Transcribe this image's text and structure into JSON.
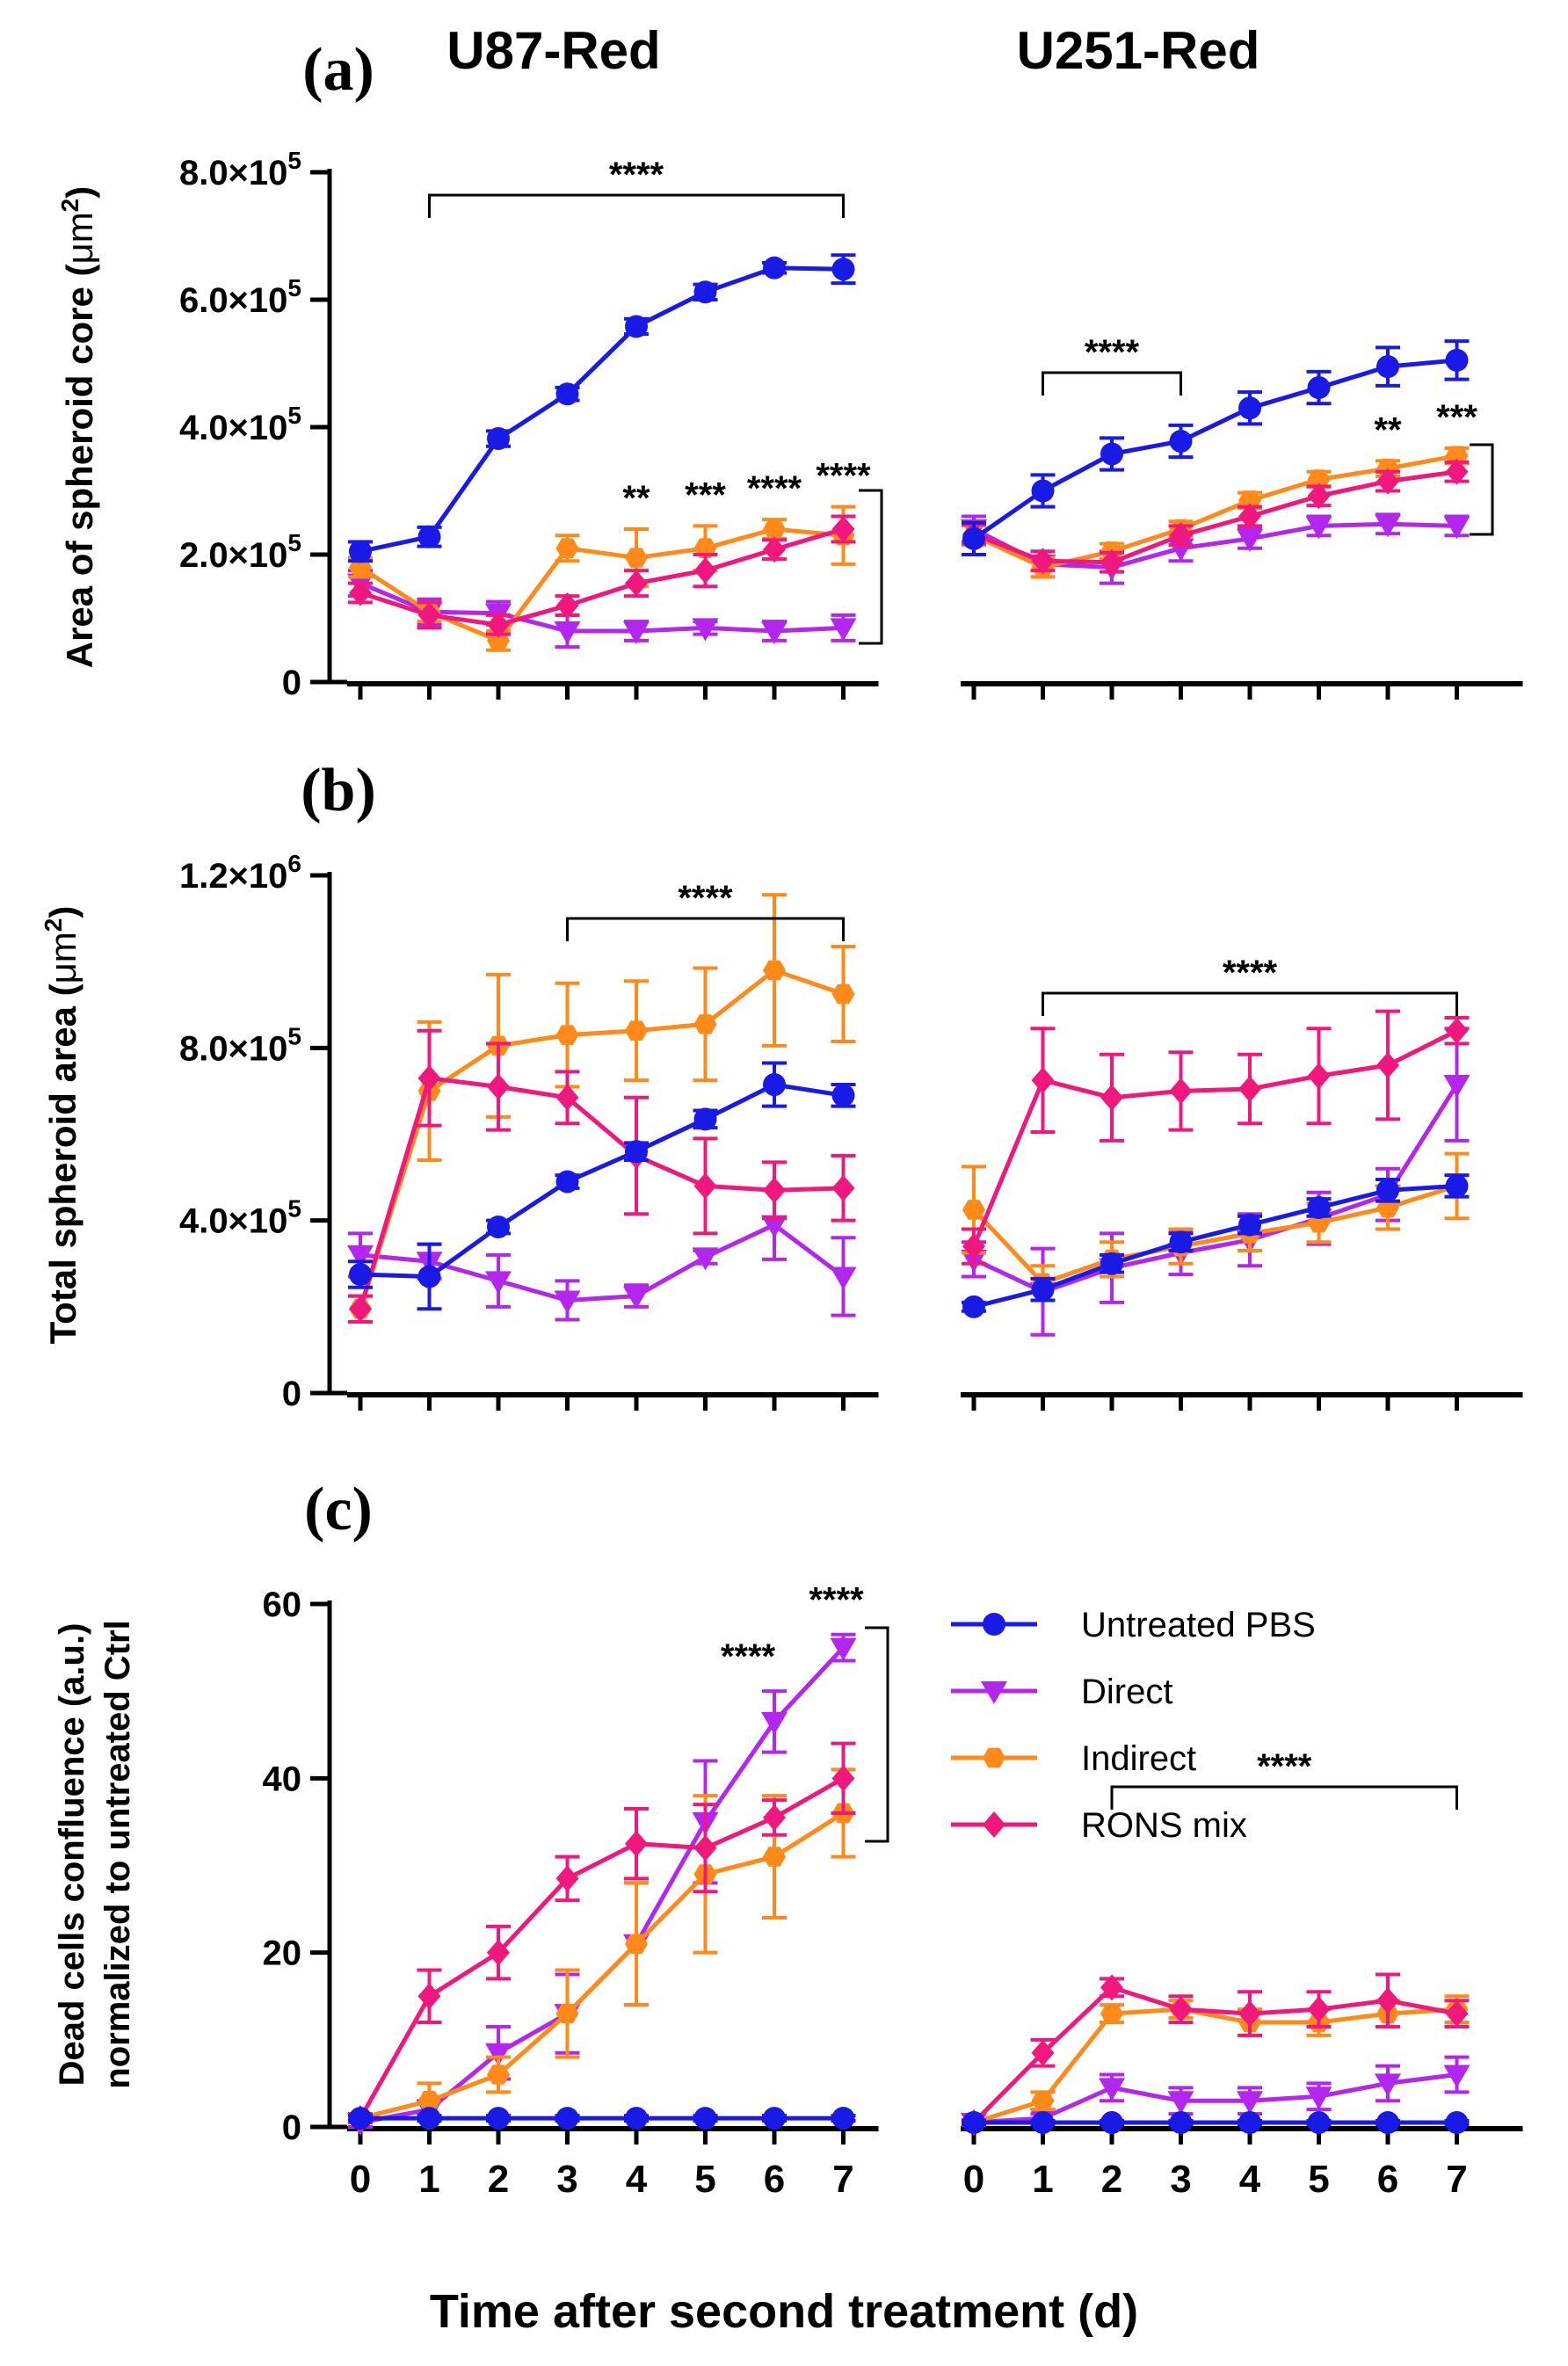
{
  "figure": {
    "xlabel": "Time after second treatment (d)",
    "x_ticks": [
      "0",
      "1",
      "2",
      "3",
      "4",
      "5",
      "6",
      "7"
    ],
    "legend": [
      {
        "name": "Untreated PBS",
        "color": "#1a1ae6",
        "marker": "circle"
      },
      {
        "name": "Direct",
        "color": "#b326ee",
        "marker": "triangle-down"
      },
      {
        "name": "Indirect",
        "color": "#ff8a1a",
        "marker": "hexagon"
      },
      {
        "name": "RONS mix",
        "color": "#f0187c",
        "marker": "diamond"
      }
    ],
    "panel_letters": [
      "(a)",
      "(b)",
      "(c)"
    ],
    "cell_lines": [
      "U87-Red",
      "U251-Red"
    ]
  },
  "chart_data": [
    {
      "type": "line",
      "panel": "(a)",
      "ylabel_main": "Area of spheroid core (",
      "ylabel_unit": "μm",
      "ylabel_sup": "2",
      "ylabel_end": ")",
      "ylim": [
        0,
        800000
      ],
      "y_ticks": [
        {
          "value": 0,
          "label": "0"
        },
        {
          "value": 200000,
          "mant": "2.0×10",
          "exp": "5"
        },
        {
          "value": 400000,
          "mant": "4.0×10",
          "exp": "5"
        },
        {
          "value": 600000,
          "mant": "6.0×10",
          "exp": "5"
        },
        {
          "value": 800000,
          "mant": "8.0×10",
          "exp": "5"
        }
      ],
      "groups": [
        {
          "cell_line": "U87-Red",
          "x": [
            0,
            1,
            2,
            3,
            4,
            5,
            6,
            7
          ],
          "series": [
            {
              "name": "Untreated PBS",
              "values": [
                205000,
                228000,
                382000,
                452000,
                558000,
                612000,
                650000,
                648000
              ],
              "errors": [
                15000,
                15000,
                12000,
                10000,
                12000,
                12000,
                8000,
                22000
              ]
            },
            {
              "name": "Direct",
              "values": [
                155000,
                110000,
                108000,
                80000,
                80000,
                85000,
                80000,
                85000
              ],
              "errors": [
                20000,
                20000,
                18000,
                25000,
                15000,
                10000,
                15000,
                20000
              ]
            },
            {
              "name": "Indirect",
              "values": [
                180000,
                110000,
                65000,
                210000,
                195000,
                210000,
                240000,
                230000
              ],
              "errors": [
                15000,
                15000,
                15000,
                20000,
                45000,
                35000,
                15000,
                45000
              ]
            },
            {
              "name": "RONS mix",
              "values": [
                140000,
                105000,
                90000,
                120000,
                155000,
                175000,
                208000,
                240000
              ],
              "errors": [
                15000,
                20000,
                15000,
                15000,
                20000,
                25000,
                15000,
                20000
              ]
            }
          ],
          "annotations": {
            "top_bracket": {
              "from": 1,
              "to": 7,
              "label": "****"
            },
            "point_stars": [
              {
                "x": 4,
                "label": "**"
              },
              {
                "x": 5,
                "label": "***"
              },
              {
                "x": 6,
                "label": "****"
              },
              {
                "x": 7,
                "label": "****"
              }
            ]
          }
        },
        {
          "cell_line": "U251-Red",
          "x": [
            0,
            1,
            2,
            3,
            4,
            5,
            6,
            7
          ],
          "series": [
            {
              "name": "Untreated PBS",
              "values": [
                225000,
                300000,
                358000,
                378000,
                430000,
                462000,
                495000,
                505000
              ],
              "errors": [
                25000,
                25000,
                25000,
                25000,
                25000,
                25000,
                30000,
                30000
              ]
            },
            {
              "name": "Direct",
              "values": [
                240000,
                185000,
                180000,
                210000,
                225000,
                245000,
                248000,
                245000
              ],
              "errors": [
                20000,
                20000,
                25000,
                20000,
                15000,
                15000,
                15000,
                15000
              ]
            },
            {
              "name": "Indirect",
              "values": [
                230000,
                180000,
                205000,
                240000,
                285000,
                318000,
                335000,
                355000
              ],
              "errors": [
                15000,
                15000,
                12000,
                12000,
                12000,
                12000,
                12000,
                12000
              ]
            },
            {
              "name": "RONS mix",
              "values": [
                232000,
                190000,
                188000,
                230000,
                260000,
                292000,
                315000,
                330000
              ],
              "errors": [
                15000,
                15000,
                15000,
                15000,
                15000,
                15000,
                15000,
                15000
              ]
            }
          ],
          "annotations": {
            "top_bracket": {
              "from": 1,
              "to": 3,
              "label": "****"
            },
            "point_stars": [
              {
                "x": 6,
                "label": "**"
              },
              {
                "x": 7,
                "label": "***"
              }
            ]
          }
        }
      ]
    },
    {
      "type": "line",
      "panel": "(b)",
      "ylabel_main": "Total spheroid area (",
      "ylabel_unit": "μm",
      "ylabel_sup": "2",
      "ylabel_end": ")",
      "ylim": [
        0,
        1200000
      ],
      "y_ticks": [
        {
          "value": 0,
          "label": "0"
        },
        {
          "value": 400000,
          "mant": "4.0×10",
          "exp": "5"
        },
        {
          "value": 800000,
          "mant": "8.0×10",
          "exp": "5"
        },
        {
          "value": 1200000,
          "mant": "1.2×10",
          "exp": "6"
        }
      ],
      "groups": [
        {
          "cell_line": "U87-Red",
          "x": [
            0,
            1,
            2,
            3,
            4,
            5,
            6,
            7
          ],
          "series": [
            {
              "name": "Untreated PBS",
              "values": [
                275000,
                270000,
                385000,
                490000,
                560000,
                635000,
                715000,
                690000
              ],
              "errors": [
                30000,
                75000,
                15000,
                15000,
                20000,
                20000,
                50000,
                25000
              ]
            },
            {
              "name": "Direct",
              "values": [
                320000,
                305000,
                260000,
                215000,
                225000,
                315000,
                390000,
                270000
              ],
              "errors": [
                50000,
                40000,
                60000,
                45000,
                25000,
                15000,
                80000,
                90000
              ]
            },
            {
              "name": "Indirect",
              "values": [
                195000,
                700000,
                805000,
                830000,
                840000,
                855000,
                980000,
                925000
              ],
              "errors": [
                30000,
                160000,
                165000,
                120000,
                115000,
                130000,
                175000,
                110000
              ]
            },
            {
              "name": "RONS mix",
              "values": [
                195000,
                730000,
                710000,
                685000,
                550000,
                480000,
                470000,
                475000
              ],
              "errors": [
                30000,
                110000,
                100000,
                60000,
                135000,
                110000,
                65000,
                75000
              ]
            }
          ],
          "annotations": {
            "top_bracket": {
              "from": 3,
              "to": 7,
              "label": "****"
            },
            "point_stars": []
          }
        },
        {
          "cell_line": "U251-Red",
          "x": [
            0,
            1,
            2,
            3,
            4,
            5,
            6,
            7
          ],
          "series": [
            {
              "name": "Untreated PBS",
              "values": [
                200000,
                240000,
                300000,
                350000,
                390000,
                430000,
                470000,
                480000
              ],
              "errors": [
                10000,
                25000,
                20000,
                20000,
                20000,
                20000,
                25000,
                25000
              ]
            },
            {
              "name": "Direct",
              "values": [
                310000,
                235000,
                290000,
                325000,
                355000,
                405000,
                460000,
                715000
              ],
              "errors": [
                40000,
                100000,
                80000,
                50000,
                60000,
                60000,
                60000,
                130000
              ]
            },
            {
              "name": "Indirect",
              "values": [
                425000,
                255000,
                310000,
                340000,
                370000,
                395000,
                430000,
                480000
              ],
              "errors": [
                100000,
                40000,
                40000,
                40000,
                40000,
                45000,
                50000,
                75000
              ]
            },
            {
              "name": "RONS mix",
              "values": [
                340000,
                725000,
                685000,
                700000,
                705000,
                735000,
                760000,
                840000
              ],
              "errors": [
                40000,
                120000,
                100000,
                90000,
                80000,
                110000,
                125000,
                30000
              ]
            }
          ],
          "annotations": {
            "top_bracket": {
              "from": 1,
              "to": 7,
              "label": "****"
            },
            "point_stars": []
          }
        }
      ]
    },
    {
      "type": "line",
      "panel": "(c)",
      "ylabel_main": "Dead cells confluence (a.u.)",
      "ylabel_line2": "normalized to untreated Ctrl",
      "ylim": [
        0,
        60
      ],
      "y_ticks": [
        {
          "value": 0,
          "label": "0"
        },
        {
          "value": 20,
          "label": "20"
        },
        {
          "value": 40,
          "label": "40"
        },
        {
          "value": 60,
          "label": "60"
        }
      ],
      "groups": [
        {
          "cell_line": "U87-Red",
          "x": [
            0,
            1,
            2,
            3,
            4,
            5,
            6,
            7
          ],
          "series": [
            {
              "name": "Untreated PBS",
              "values": [
                1,
                1,
                1,
                1,
                1,
                1,
                1,
                1
              ],
              "errors": [
                0.3,
                0.3,
                0.3,
                0.3,
                0.3,
                0.3,
                0.3,
                0.3
              ]
            },
            {
              "name": "Direct",
              "values": [
                0.5,
                2,
                8.5,
                13,
                21,
                35,
                46.5,
                55
              ],
              "errors": [
                0.5,
                1,
                3,
                4.5,
                7,
                7,
                3.5,
                1.5
              ]
            },
            {
              "name": "Indirect",
              "values": [
                1,
                3,
                6,
                13,
                21,
                29,
                31,
                36
              ],
              "errors": [
                0.5,
                2,
                2,
                5,
                7,
                9,
                7,
                5
              ]
            },
            {
              "name": "RONS mix",
              "values": [
                1,
                15,
                20,
                28.5,
                32.5,
                32,
                35.5,
                40
              ],
              "errors": [
                0.5,
                3,
                3,
                2.5,
                4,
                5,
                2,
                4
              ]
            }
          ],
          "annotations": {
            "top_bracket": null,
            "point_stars": [
              {
                "x": 6,
                "label": "****"
              },
              {
                "x": 7,
                "label": "****"
              }
            ]
          }
        },
        {
          "cell_line": "U251-Red",
          "x": [
            0,
            1,
            2,
            3,
            4,
            5,
            6,
            7
          ],
          "series": [
            {
              "name": "Untreated PBS",
              "values": [
                0.5,
                0.5,
                0.5,
                0.5,
                0.5,
                0.5,
                0.5,
                0.5
              ],
              "errors": [
                0.2,
                0.2,
                0.2,
                0.2,
                0.2,
                0.2,
                0.2,
                0.2
              ]
            },
            {
              "name": "Direct",
              "values": [
                0.5,
                1,
                4.5,
                3,
                3,
                3.5,
                5,
                6
              ],
              "errors": [
                0.3,
                0.5,
                1.5,
                1.5,
                1.5,
                1.5,
                2,
                2
              ]
            },
            {
              "name": "Indirect",
              "values": [
                0.5,
                3,
                13,
                13.5,
                12,
                12,
                13,
                13.5
              ],
              "errors": [
                0.3,
                1,
                1,
                1,
                1.5,
                1.5,
                1.5,
                1.5
              ]
            },
            {
              "name": "RONS mix",
              "values": [
                0.5,
                8.5,
                16,
                13.5,
                13,
                13.5,
                14.5,
                13
              ],
              "errors": [
                0.3,
                1.5,
                1,
                1.5,
                2.5,
                2,
                3,
                1.5
              ]
            }
          ],
          "annotations": {
            "top_bracket": {
              "from": 2,
              "to": 7,
              "label": "****"
            },
            "point_stars": []
          }
        }
      ]
    }
  ]
}
